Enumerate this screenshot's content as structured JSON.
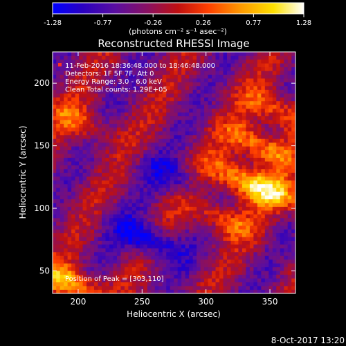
{
  "chart_data": {
    "type": "heatmap",
    "title": "Reconstructed RHESSI Image",
    "xlabel": "Heliocentric X (arcsec)",
    "ylabel": "Heliocentric Y (arcsec)",
    "xlim": [
      180,
      370
    ],
    "ylim": [
      32,
      225
    ],
    "x_ticks": [
      200,
      250,
      300,
      350
    ],
    "y_ticks": [
      50,
      100,
      150,
      200
    ],
    "colorbar": {
      "min": -1.28,
      "max": 1.28,
      "ticks": [
        "-1.28",
        "-0.77",
        "-0.26",
        "0.26",
        "0.77",
        "1.28"
      ],
      "unit_label": "(photons cm⁻² s⁻¹ asec⁻²)",
      "colors": [
        "#0000ff",
        "#2a00c0",
        "#5a0ea0",
        "#8a1060",
        "#c01010",
        "#ff4000",
        "#ff9a00",
        "#ffe000",
        "#ffffff"
      ]
    },
    "annotations": [
      "11-Feb-2016 18:36:48.000 to 18:46:48.000",
      "Detectors: 1F 5F 7F, Att 0",
      "Energy Range: 3.0 - 6.0 keV",
      "Clean      Total counts: 1.29E+05"
    ],
    "peak_label": "Position of Peak = [303,110]",
    "peak": [
      303,
      110
    ],
    "features": [
      {
        "x": 328,
        "y": 122,
        "value": 1.15
      },
      {
        "x": 342,
        "y": 150,
        "value": 1.1
      },
      {
        "x": 356,
        "y": 178,
        "value": 0.9
      },
      {
        "x": 312,
        "y": 92,
        "value": 0.8
      },
      {
        "x": 358,
        "y": 112,
        "value": 0.85
      },
      {
        "x": 195,
        "y": 40,
        "value": 1.2
      },
      {
        "x": 200,
        "y": 170,
        "value": 0.7
      },
      {
        "x": 255,
        "y": 75,
        "value": -1.0
      },
      {
        "x": 275,
        "y": 125,
        "value": -0.6
      }
    ]
  },
  "footer": {
    "timestamp": "8-Oct-2017 13:20"
  }
}
